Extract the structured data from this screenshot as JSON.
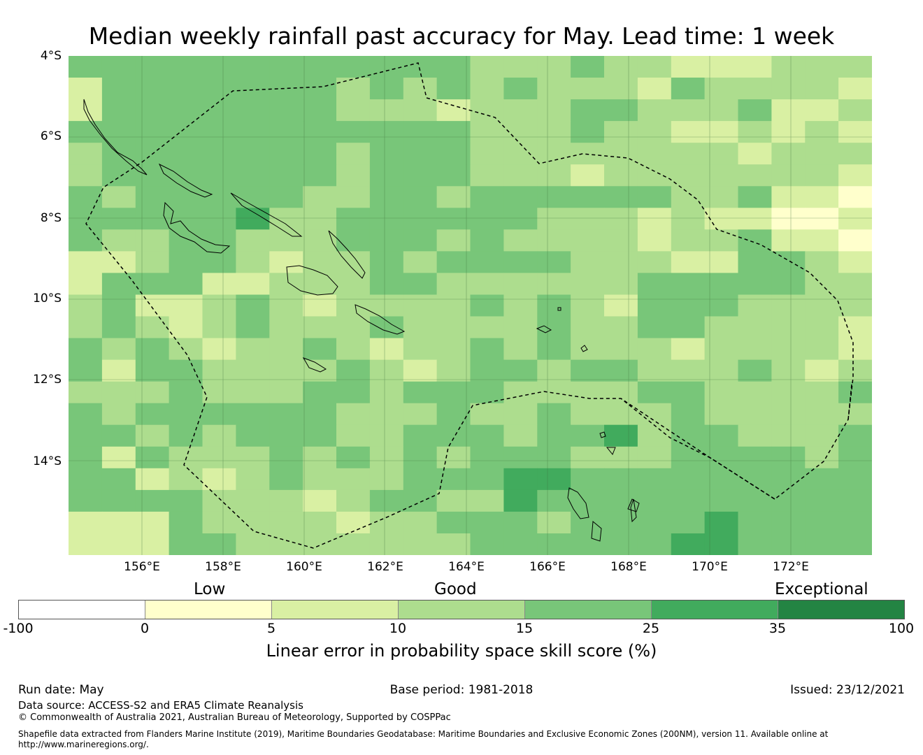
{
  "title": "Median weekly rainfall past accuracy for May. Lead time: 1 week",
  "map": {
    "lat_labels": [
      "4°S",
      "6°S",
      "8°S",
      "10°S",
      "12°S",
      "14°S"
    ],
    "lon_labels": [
      "156°E",
      "158°E",
      "160°E",
      "162°E",
      "164°E",
      "166°E",
      "168°E",
      "170°E",
      "172°E"
    ],
    "color_classes": [
      "#ffffff",
      "#ffffcc",
      "#d9f0a3",
      "#addd8e",
      "#78c679",
      "#41ab5d",
      "#238443"
    ],
    "ocean_color": "#78c679",
    "coastline_color": "#000000",
    "eez_boundary_style": "dashed"
  },
  "legend": {
    "category_labels": {
      "low": "Low",
      "good": "Good",
      "exceptional": "Exceptional"
    },
    "ticks": [
      "-100",
      "0",
      "5",
      "10",
      "15",
      "25",
      "35",
      "100"
    ],
    "label": "Linear error in probability space skill score (%)"
  },
  "footer": {
    "run_date": "Run date: May",
    "base_period": "Base period: 1981-2018",
    "issued": "Issued: 23/12/2021",
    "data_source": "Data source: ACCESS-S2 and ERA5 Climate Reanalysis",
    "copyright": "© Commonwealth of Australia 2021, Australian Bureau of Meteorology, Supported by COSPPac",
    "shapefile": "Shapefile data extracted from Flanders Marine Institute (2019), Maritime Boundaries Geodatabase: Maritime Boundaries and Exclusive Economic Zones (200NM), version 11. Available online at",
    "url": "http://www.marineregions.org/."
  }
}
